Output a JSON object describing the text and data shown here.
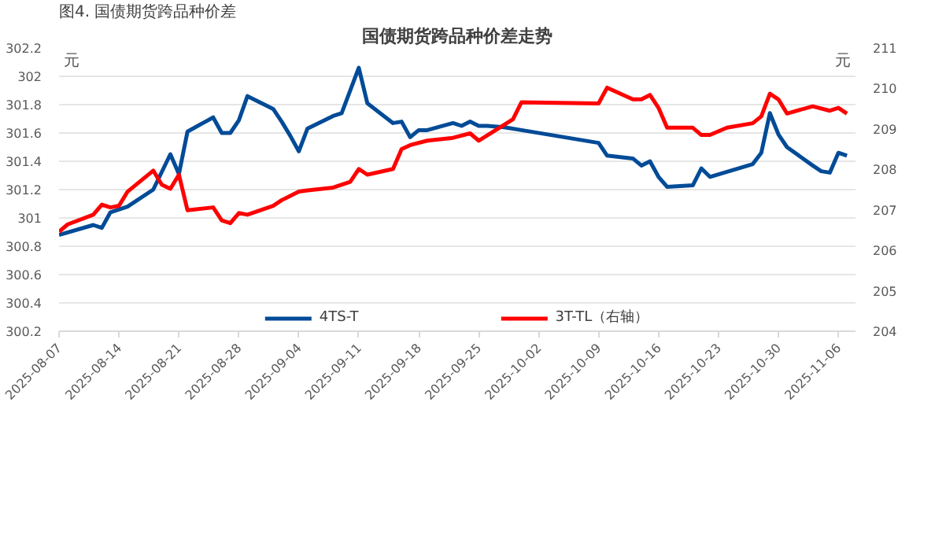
{
  "chart_data": {
    "type": "line",
    "title": "国债期货跨品种价差走势",
    "annotations": [
      "图4.  国债期货跨品种价差"
    ],
    "ylabel": "元",
    "y2label": "元",
    "xlim": [
      "2025-08-07",
      "2025-11-08"
    ],
    "xticks": [
      "2025-08-07",
      "2025-08-14",
      "2025-08-21",
      "2025-08-28",
      "2025-09-04",
      "2025-09-11",
      "2025-09-18",
      "2025-09-25",
      "2025-10-02",
      "2025-10-09",
      "2025-10-16",
      "2025-10-23",
      "2025-10-30",
      "2025-11-06"
    ],
    "ylim": [
      300.2,
      302.2
    ],
    "yticks": [
      300.2,
      300.4,
      300.6,
      300.8,
      301,
      301.2,
      301.4,
      301.6,
      301.8,
      302,
      302.2
    ],
    "y2lim": [
      204,
      211
    ],
    "y2ticks": [
      204,
      205,
      206,
      207,
      208,
      209,
      210,
      211
    ],
    "grid": "y",
    "legend": "bottom",
    "line_style": "solid",
    "marker": "none",
    "series": [
      {
        "name": "4TS-T",
        "color": "#004b97",
        "x": [
          "2025-08-07",
          "2025-08-11",
          "2025-08-12",
          "2025-08-13",
          "2025-08-15",
          "2025-08-18",
          "2025-08-20",
          "2025-08-21",
          "2025-08-22",
          "2025-08-25",
          "2025-08-26",
          "2025-08-27",
          "2025-08-28",
          "2025-08-29",
          "2025-09-01",
          "2025-09-02",
          "2025-09-03",
          "2025-09-04",
          "2025-09-05",
          "2025-09-08",
          "2025-09-09",
          "2025-09-11",
          "2025-09-12",
          "2025-09-15",
          "2025-09-16",
          "2025-09-17",
          "2025-09-18",
          "2025-09-19",
          "2025-09-22",
          "2025-09-23",
          "2025-09-24",
          "2025-09-25",
          "2025-09-26",
          "2025-09-28",
          "2025-09-30",
          "2025-10-09",
          "2025-10-10",
          "2025-10-13",
          "2025-10-14",
          "2025-10-15",
          "2025-10-16",
          "2025-10-17",
          "2025-10-20",
          "2025-10-21",
          "2025-10-22",
          "2025-10-27",
          "2025-10-28",
          "2025-10-29",
          "2025-10-30",
          "2025-10-31",
          "2025-11-03",
          "2025-11-04",
          "2025-11-05",
          "2025-11-06",
          "2025-11-07"
        ],
        "values": [
          300.88,
          300.95,
          300.93,
          301.04,
          301.08,
          301.2,
          301.45,
          301.31,
          301.61,
          301.71,
          301.6,
          301.6,
          301.69,
          301.86,
          301.77,
          301.68,
          301.58,
          301.47,
          301.63,
          301.72,
          301.74,
          302.06,
          301.81,
          301.67,
          301.68,
          301.57,
          301.62,
          301.62,
          301.67,
          301.65,
          301.68,
          301.65,
          301.65,
          301.64,
          301.62,
          301.53,
          301.44,
          301.42,
          301.37,
          301.4,
          301.29,
          301.22,
          301.23,
          301.35,
          301.29,
          301.38,
          301.46,
          301.74,
          301.59,
          301.5,
          301.37,
          301.33,
          301.32,
          301.46,
          301.44
        ]
      },
      {
        "name": "3T-TL（右轴）",
        "color": "#ff0000",
        "axis": "y2",
        "x": [
          "2025-08-07",
          "2025-08-08",
          "2025-08-11",
          "2025-08-12",
          "2025-08-13",
          "2025-08-14",
          "2025-08-15",
          "2025-08-18",
          "2025-08-19",
          "2025-08-20",
          "2025-08-21",
          "2025-08-22",
          "2025-08-25",
          "2025-08-26",
          "2025-08-27",
          "2025-08-28",
          "2025-08-29",
          "2025-09-01",
          "2025-09-02",
          "2025-09-04",
          "2025-09-05",
          "2025-09-08",
          "2025-09-10",
          "2025-09-11",
          "2025-09-12",
          "2025-09-15",
          "2025-09-16",
          "2025-09-17",
          "2025-09-19",
          "2025-09-22",
          "2025-09-24",
          "2025-09-25",
          "2025-09-29",
          "2025-09-30",
          "2025-10-09",
          "2025-10-10",
          "2025-10-13",
          "2025-10-14",
          "2025-10-15",
          "2025-10-16",
          "2025-10-17",
          "2025-10-20",
          "2025-10-21",
          "2025-10-22",
          "2025-10-24",
          "2025-10-27",
          "2025-10-28",
          "2025-10-29",
          "2025-10-30",
          "2025-10-31",
          "2025-11-03",
          "2025-11-05",
          "2025-11-06",
          "2025-11-07"
        ],
        "values": [
          206.46,
          206.64,
          206.88,
          207.13,
          207.06,
          207.1,
          207.45,
          207.97,
          207.62,
          207.52,
          207.87,
          206.99,
          207.06,
          206.74,
          206.67,
          206.92,
          206.88,
          207.1,
          207.24,
          207.45,
          207.48,
          207.55,
          207.69,
          208.01,
          207.87,
          208.01,
          208.5,
          208.6,
          208.71,
          208.78,
          208.89,
          208.71,
          209.24,
          209.66,
          209.63,
          210.02,
          209.73,
          209.73,
          209.84,
          209.52,
          209.03,
          209.03,
          208.85,
          208.85,
          209.03,
          209.14,
          209.31,
          209.87,
          209.73,
          209.38,
          209.56,
          209.45,
          209.52,
          209.38
        ]
      }
    ]
  }
}
